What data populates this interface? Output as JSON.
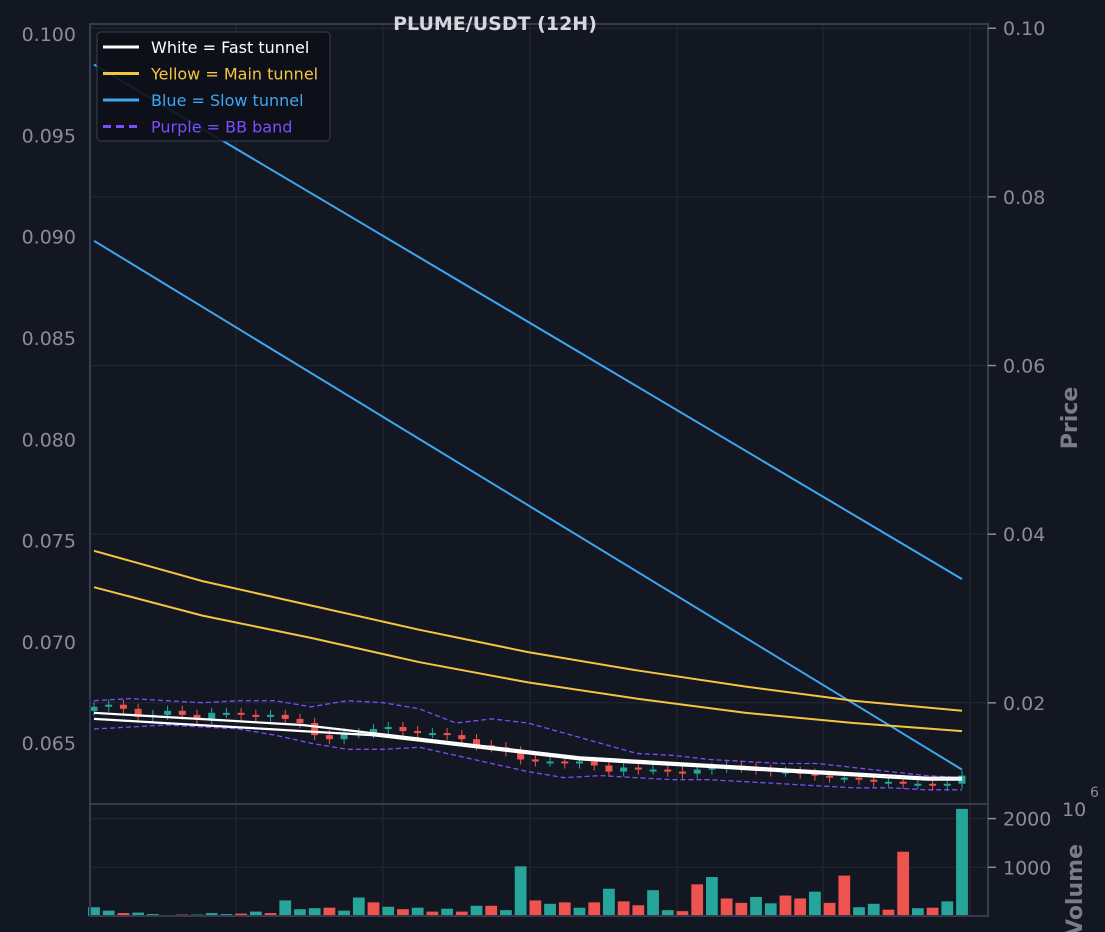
{
  "chart_data": {
    "type": "candlestick",
    "title": "PLUME/USDT (12H)",
    "left_axis": {
      "ylim": [
        0.062,
        0.1005
      ],
      "ticks": [
        "0.100",
        "0.095",
        "0.090",
        "0.085",
        "0.080",
        "0.075",
        "0.070",
        "0.065"
      ],
      "tick_values": [
        0.1,
        0.095,
        0.09,
        0.085,
        0.08,
        0.075,
        0.07,
        0.065
      ]
    },
    "right_axis": {
      "label": "Price",
      "ylim": [
        0.008,
        0.1005
      ],
      "ticks": [
        "0.10",
        "0.08",
        "0.06",
        "0.04",
        "0.02"
      ],
      "tick_values": [
        0.1,
        0.08,
        0.06,
        0.04,
        0.02
      ]
    },
    "volume_axis": {
      "label": "Volume",
      "multiplier": "10",
      "exponent": "6",
      "ylim": [
        0,
        2300
      ],
      "ticks": [
        "2000",
        "1000"
      ],
      "tick_values": [
        2000,
        1000
      ]
    },
    "grid": true,
    "legend": {
      "placement": "top-left",
      "entries": [
        {
          "label": "White = Fast tunnel",
          "color": "#ffffff",
          "style": "solid"
        },
        {
          "label": "Yellow = Main tunnel",
          "color": "#f5c542",
          "style": "solid"
        },
        {
          "label": "Blue = Slow tunnel",
          "color": "#3ea6f2",
          "style": "solid"
        },
        {
          "label": "Purple = BB band",
          "color": "#7c4dff",
          "style": "dashed"
        }
      ]
    },
    "colors": {
      "up": "#26a69a",
      "down": "#ef5350",
      "background": "#131722",
      "grid": "#232834",
      "frame": "#363c4e"
    },
    "n_candles": 60,
    "close": [
      0.0668,
      0.0669,
      0.0667,
      0.0663,
      0.0664,
      0.0666,
      0.0664,
      0.0662,
      0.0665,
      0.0665,
      0.0664,
      0.0663,
      0.0664,
      0.0662,
      0.066,
      0.0654,
      0.0652,
      0.0655,
      0.0655,
      0.0657,
      0.0658,
      0.0656,
      0.0655,
      0.0655,
      0.0654,
      0.0652,
      0.0649,
      0.0648,
      0.0646,
      0.0642,
      0.0641,
      0.0641,
      0.064,
      0.0641,
      0.0639,
      0.0636,
      0.0638,
      0.0637,
      0.0637,
      0.0636,
      0.0635,
      0.0637,
      0.0638,
      0.0639,
      0.0638,
      0.0637,
      0.0636,
      0.0636,
      0.0635,
      0.0634,
      0.0633,
      0.0633,
      0.0632,
      0.0631,
      0.0631,
      0.063,
      0.063,
      0.0629,
      0.063,
      0.0634
    ],
    "fast_tunnel": [
      [
        0.0662,
        0.0661,
        0.066,
        0.0659,
        0.0658,
        0.0657,
        0.0656,
        0.0655,
        0.0654,
        0.0652,
        0.065,
        0.0648,
        0.0646,
        0.0644,
        0.0642,
        0.0641,
        0.064,
        0.0639,
        0.0638,
        0.0637,
        0.0636,
        0.0635,
        0.0634,
        0.0633,
        0.0632,
        0.0632
      ],
      [
        0.0665,
        0.0664,
        0.0663,
        0.0662,
        0.0661,
        0.066,
        0.0659,
        0.0657,
        0.0655,
        0.0653,
        0.0651,
        0.0649,
        0.0647,
        0.0645,
        0.0643,
        0.0642,
        0.0641,
        0.064,
        0.0639,
        0.0638,
        0.0637,
        0.0636,
        0.0635,
        0.0634,
        0.0633,
        0.0633
      ]
    ],
    "main_tunnel": [
      [
        0.0727,
        0.0713,
        0.0702,
        0.069,
        0.068,
        0.0672,
        0.0665,
        0.066,
        0.0656
      ],
      [
        0.0745,
        0.073,
        0.0718,
        0.0706,
        0.0695,
        0.0686,
        0.0678,
        0.0671,
        0.0666
      ]
    ],
    "slow_tunnel": [
      [
        0.0898,
        0.0637
      ],
      [
        0.0985,
        0.0731
      ]
    ],
    "bb_upper": [
      0.0671,
      0.0672,
      0.0671,
      0.067,
      0.0671,
      0.0671,
      0.0668,
      0.0671,
      0.067,
      0.0667,
      0.066,
      0.0662,
      0.066,
      0.0655,
      0.065,
      0.0645,
      0.0644,
      0.0642,
      0.0641,
      0.064,
      0.064,
      0.0638,
      0.0636,
      0.0634,
      0.0633
    ],
    "bb_lower": [
      0.0657,
      0.0658,
      0.0659,
      0.0658,
      0.0657,
      0.0654,
      0.065,
      0.0647,
      0.0647,
      0.0648,
      0.0644,
      0.064,
      0.0636,
      0.0633,
      0.0634,
      0.0633,
      0.0632,
      0.0632,
      0.0631,
      0.063,
      0.0629,
      0.0628,
      0.0628,
      0.0627,
      0.0627
    ],
    "volume": [
      180,
      110,
      60,
      70,
      40,
      20,
      30,
      30,
      60,
      40,
      50,
      90,
      60,
      320,
      140,
      160,
      170,
      110,
      380,
      280,
      190,
      140,
      170,
      90,
      150,
      90,
      210,
      210,
      120,
      1020,
      320,
      250,
      280,
      170,
      280,
      560,
      300,
      220,
      530,
      120,
      100,
      650,
      800,
      360,
      270,
      390,
      260,
      420,
      360,
      500,
      270,
      830,
      180,
      250,
      130,
      1320,
      160,
      170,
      300,
      2200
    ],
    "volume_up": [
      true,
      true,
      false,
      true,
      true,
      true,
      false,
      true,
      true,
      true,
      false,
      true,
      false,
      true,
      true,
      true,
      false,
      true,
      true,
      false,
      true,
      false,
      true,
      false,
      true,
      false,
      true,
      false,
      true,
      true,
      false,
      true,
      false,
      true,
      false,
      true,
      false,
      false,
      true,
      true,
      false,
      false,
      true,
      false,
      false,
      true,
      true,
      false,
      false,
      true,
      false,
      false,
      true,
      true,
      false,
      false,
      true,
      false,
      true,
      true
    ]
  }
}
